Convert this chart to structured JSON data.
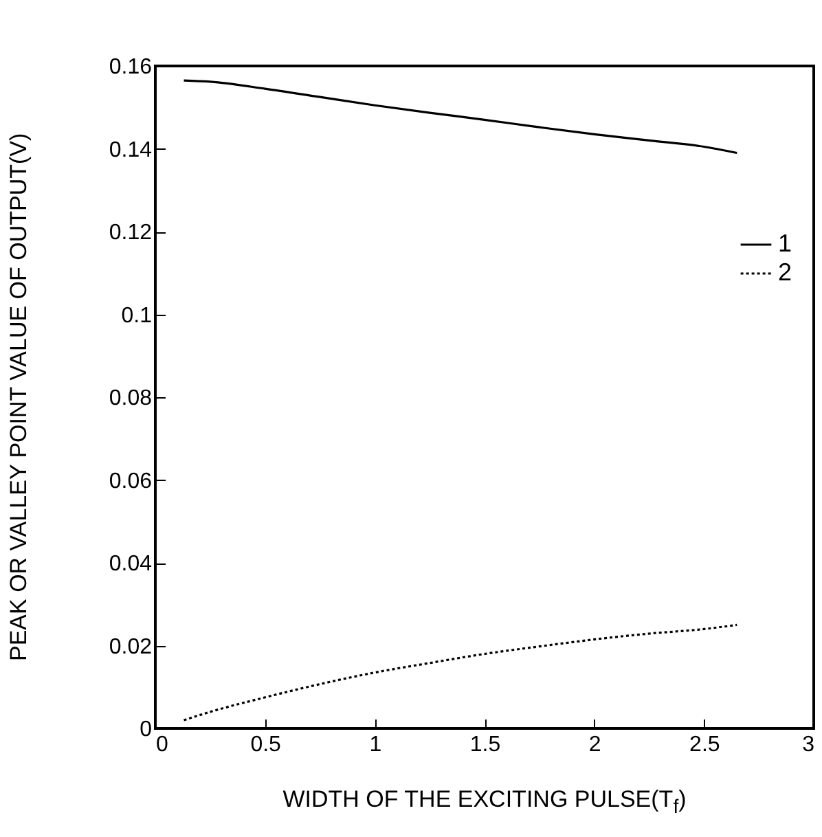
{
  "chart_data": {
    "type": "line",
    "xlabel": "WIDTH OF THE EXCITING PULSE(T$_{f}$)",
    "ylabel": "PEAK OR VALLEY POINT VALUE OF OUTPUT(V)",
    "xlim": [
      0,
      3
    ],
    "xticks": [
      0,
      0.5,
      1,
      1.5,
      2,
      2.5,
      3
    ],
    "ylim": [
      0,
      0.16
    ],
    "yticks": [
      0,
      0.02,
      0.04,
      0.06,
      0.08,
      0.1,
      0.12,
      0.14,
      0.16
    ],
    "grid": false,
    "legend": "top right",
    "series": [
      {
        "name": "1",
        "color": "#000000",
        "line_style": "solid",
        "x": [
          0.13,
          0.25,
          0.5,
          0.75,
          1,
          1.25,
          1.5,
          1.75,
          2,
          2.25,
          2.5,
          2.65
        ],
        "values": [
          0.1565,
          0.1562,
          0.1545,
          0.1525,
          0.1505,
          0.1487,
          0.147,
          0.1452,
          0.1435,
          0.142,
          0.1405,
          0.139
        ]
      },
      {
        "name": "2",
        "color": "#000000",
        "line_style": "dotted",
        "x": [
          0.13,
          0.25,
          0.5,
          0.75,
          1,
          1.25,
          1.5,
          1.75,
          2,
          2.25,
          2.5,
          2.65
        ],
        "values": [
          0.002,
          0.004,
          0.0075,
          0.0107,
          0.0135,
          0.0158,
          0.018,
          0.0198,
          0.0215,
          0.0229,
          0.024,
          0.025
        ]
      }
    ]
  }
}
